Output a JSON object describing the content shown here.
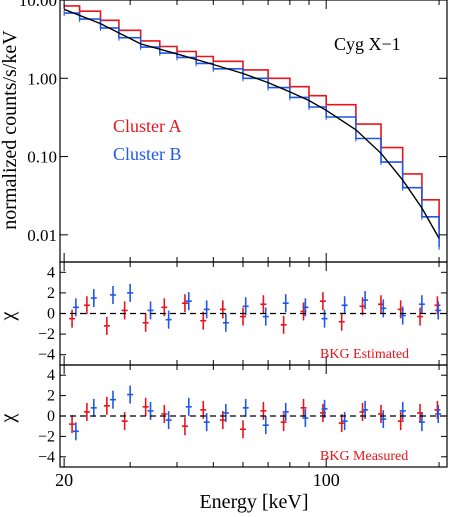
{
  "chart_data": [
    {
      "type": "line",
      "panel": "spectrum",
      "annotation": "Cyg X−1",
      "ylabel": "normalized counts/s/keV",
      "xscale": "log",
      "yscale": "log",
      "xlim": [
        19.5,
        210
      ],
      "ylim": [
        0.0045,
        10.0
      ],
      "yticks": [
        {
          "value": 10.0,
          "label": "10.00"
        },
        {
          "value": 1.0,
          "label": "1.00"
        },
        {
          "value": 0.1,
          "label": "0.10"
        },
        {
          "value": 0.01,
          "label": "0.01"
        }
      ],
      "legend_placement": "middle-left",
      "series": [
        {
          "name": "Cluster A",
          "color": "#e8141c",
          "x": [
            20,
            22,
            25,
            28,
            32,
            36,
            40,
            45,
            50,
            60,
            70,
            80,
            90,
            100,
            120,
            140,
            160,
            180,
            200
          ],
          "values": [
            8.4,
            7.2,
            5.5,
            4.1,
            3.0,
            2.55,
            2.2,
            1.9,
            1.65,
            1.28,
            1.0,
            0.78,
            0.6,
            0.46,
            0.26,
            0.13,
            0.06,
            0.028,
            0.012
          ]
        },
        {
          "name": "Cluster B",
          "color": "#1f57e8",
          "x": [
            20,
            22,
            25,
            28,
            32,
            36,
            40,
            45,
            50,
            60,
            70,
            80,
            90,
            100,
            120,
            140,
            160,
            180,
            200
          ],
          "values": [
            6.8,
            5.7,
            4.4,
            3.3,
            2.5,
            2.1,
            1.85,
            1.55,
            1.32,
            1.0,
            0.76,
            0.57,
            0.43,
            0.32,
            0.17,
            0.085,
            0.04,
            0.017,
            0.007
          ]
        },
        {
          "name": "",
          "role": "model",
          "color": "#000000",
          "x": [
            20,
            25,
            32,
            40,
            50,
            60,
            70,
            80,
            90,
            100,
            120,
            140,
            160,
            180,
            200
          ],
          "values": [
            7.6,
            5.0,
            2.75,
            2.05,
            1.5,
            1.15,
            0.88,
            0.67,
            0.52,
            0.39,
            0.22,
            0.11,
            0.05,
            0.022,
            0.009
          ]
        }
      ]
    },
    {
      "type": "scatter",
      "panel": "residuals-estimated",
      "annotation": "BKG Estimated",
      "ylabel": "χ",
      "ylim": [
        -5,
        5
      ],
      "yticks": [
        4,
        2,
        0,
        -2,
        -4
      ],
      "reference_line": 0,
      "series": [
        {
          "name": "Cluster A",
          "color": "#e8141c",
          "x": [
            21,
            23,
            26,
            29,
            33,
            37,
            42,
            47,
            53,
            60,
            68,
            77,
            87,
            98,
            110,
            125,
            140,
            158,
            178,
            198
          ],
          "values": [
            -0.5,
            0.8,
            -1.2,
            0.3,
            -0.9,
            0.6,
            1.0,
            -0.7,
            0.4,
            -0.3,
            0.9,
            -1.1,
            0.2,
            1.2,
            -0.8,
            0.7,
            0.9,
            0.4,
            -0.3,
            0.8
          ]
        },
        {
          "name": "Cluster B",
          "color": "#1f57e8",
          "x": [
            21.5,
            24,
            27,
            30,
            34,
            38,
            43,
            48,
            54,
            61,
            69,
            78,
            88,
            99,
            112,
            127,
            142,
            160,
            180,
            199
          ],
          "values": [
            0.6,
            1.5,
            1.8,
            2.0,
            0.3,
            -0.6,
            1.2,
            0.4,
            -0.9,
            0.7,
            -0.3,
            1.0,
            0.6,
            -0.5,
            0.8,
            1.3,
            0.5,
            -0.2,
            0.9,
            0.3
          ]
        }
      ]
    },
    {
      "type": "scatter",
      "panel": "residuals-measured",
      "annotation": "BKG Measured",
      "ylabel": "χ",
      "xlabel": "Energy [keV]",
      "xticks": [
        {
          "value": 20,
          "label": "20"
        },
        {
          "value": 100,
          "label": "100"
        }
      ],
      "ylim": [
        -5,
        5
      ],
      "yticks": [
        4,
        2,
        0,
        -2,
        -4
      ],
      "reference_line": 0,
      "series": [
        {
          "name": "Cluster A",
          "color": "#e8141c",
          "x": [
            21,
            23,
            26,
            29,
            33,
            37,
            42,
            47,
            53,
            60,
            68,
            77,
            87,
            98,
            110,
            125,
            140,
            158,
            178,
            198
          ],
          "values": [
            -0.8,
            0.4,
            1.0,
            -0.5,
            0.9,
            0.2,
            -1.0,
            0.6,
            -0.4,
            -1.3,
            0.5,
            -0.6,
            0.8,
            0.3,
            -0.7,
            0.4,
            0.2,
            -0.5,
            0.3,
            0.6
          ]
        },
        {
          "name": "Cluster B",
          "color": "#1f57e8",
          "x": [
            21.5,
            24,
            27,
            30,
            34,
            38,
            43,
            48,
            54,
            61,
            69,
            78,
            88,
            99,
            112,
            127,
            142,
            160,
            180,
            199
          ],
          "values": [
            -1.5,
            0.8,
            1.6,
            2.1,
            0.5,
            -0.4,
            0.9,
            -0.6,
            0.3,
            0.8,
            -0.9,
            0.4,
            -0.2,
            0.7,
            -0.5,
            0.6,
            -0.3,
            0.5,
            -0.6,
            0.2
          ]
        }
      ]
    }
  ]
}
